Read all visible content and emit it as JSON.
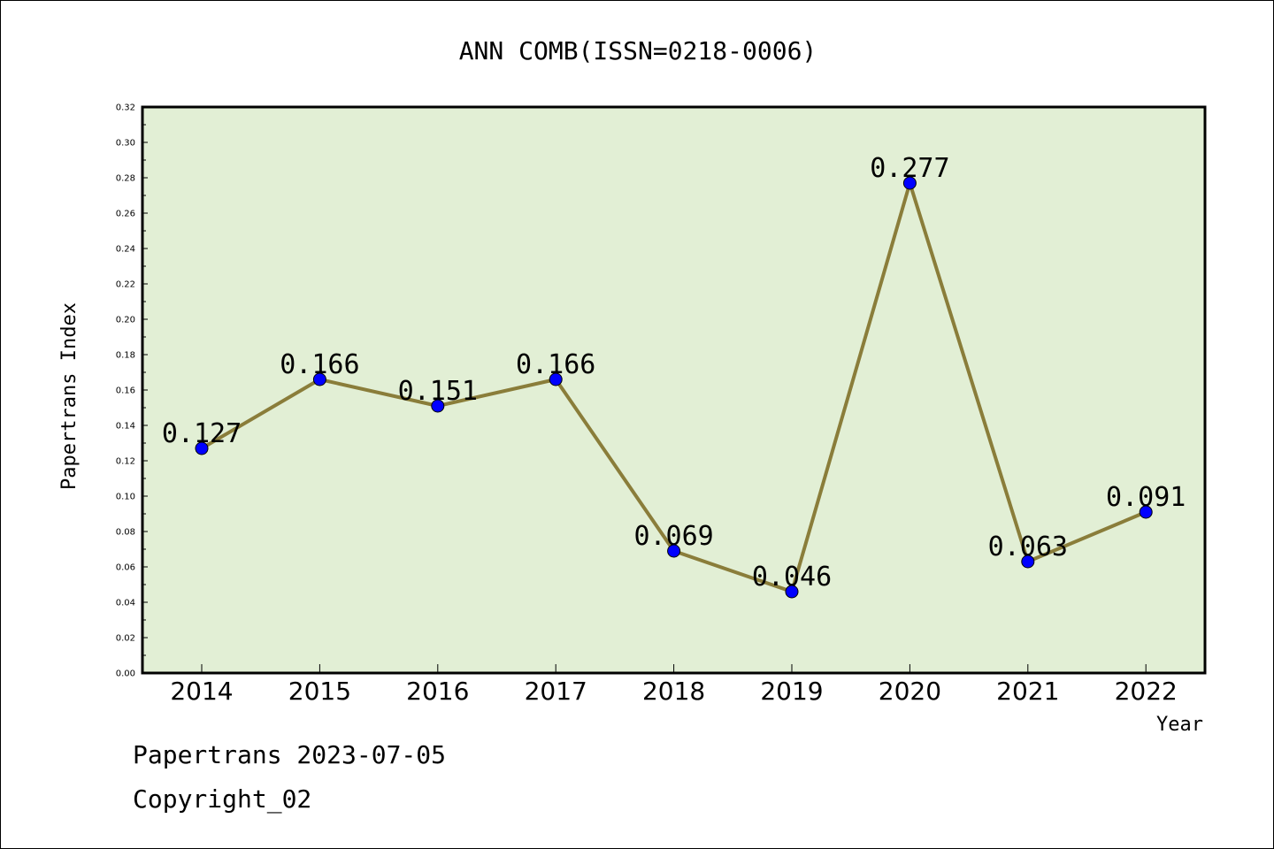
{
  "chart_data": {
    "type": "line",
    "title": "ANN COMB(ISSN=0218-0006)",
    "xlabel": "Year",
    "ylabel": "Papertrans Index",
    "categories": [
      "2014",
      "2015",
      "2016",
      "2017",
      "2018",
      "2019",
      "2020",
      "2021",
      "2022"
    ],
    "values": [
      0.127,
      0.166,
      0.151,
      0.166,
      0.069,
      0.046,
      0.277,
      0.063,
      0.091
    ],
    "data_labels": [
      "0.127",
      "0.166",
      "0.151",
      "0.166",
      "0.069",
      "0.046",
      "0.277",
      "0.063",
      "0.091"
    ],
    "ylim": [
      0,
      0.32
    ],
    "yticks": [
      "0.00",
      "0.02",
      "0.04",
      "0.06",
      "0.08",
      "0.10",
      "0.12",
      "0.14",
      "0.16",
      "0.18",
      "0.20",
      "0.22",
      "0.24",
      "0.26",
      "0.28",
      "0.30",
      "0.32"
    ],
    "grid": false,
    "colors": {
      "plot_background": "#e2efd5",
      "line": "#8a7d3a",
      "marker": "#0000ff"
    }
  },
  "footer": {
    "line1": "Papertrans 2023-07-05",
    "line2": "Copyright_02"
  }
}
